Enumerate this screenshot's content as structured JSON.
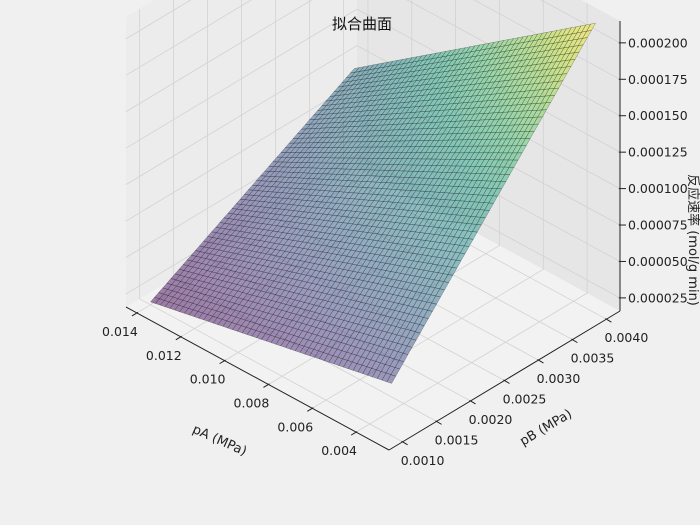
{
  "chart_data": {
    "type": "surface3d",
    "title": "拟合曲面",
    "xlabel": "pA (MPa)",
    "ylabel": "pB (MPa)",
    "zlabel": "反应速率 (mol/g min)",
    "x_ticks": [
      "0.004",
      "0.006",
      "0.008",
      "0.010",
      "0.012",
      "0.014"
    ],
    "y_ticks": [
      "0.0010",
      "0.0015",
      "0.0020",
      "0.0025",
      "0.0030",
      "0.0035",
      "0.0040"
    ],
    "z_ticks": [
      "0.000025",
      "0.000050",
      "0.000075",
      "0.000100",
      "0.000125",
      "0.000150",
      "0.000175",
      "0.000200"
    ],
    "xlim": [
      0.0025,
      0.0145
    ],
    "ylim": [
      0.0008,
      0.0042
    ],
    "zlim": [
      1.6e-05,
      0.000215
    ],
    "surface_range": {
      "x": [
        0.003,
        0.014
      ],
      "y": [
        0.001,
        0.004
      ]
    },
    "surface_corners_z": {
      "xmin_ymin": 5.2e-05,
      "xmax_ymin": 1.8e-05,
      "xmin_ymax": 0.000215,
      "xmax_ymax": 9.4e-05
    },
    "colormap": "viridis",
    "grid": true
  }
}
